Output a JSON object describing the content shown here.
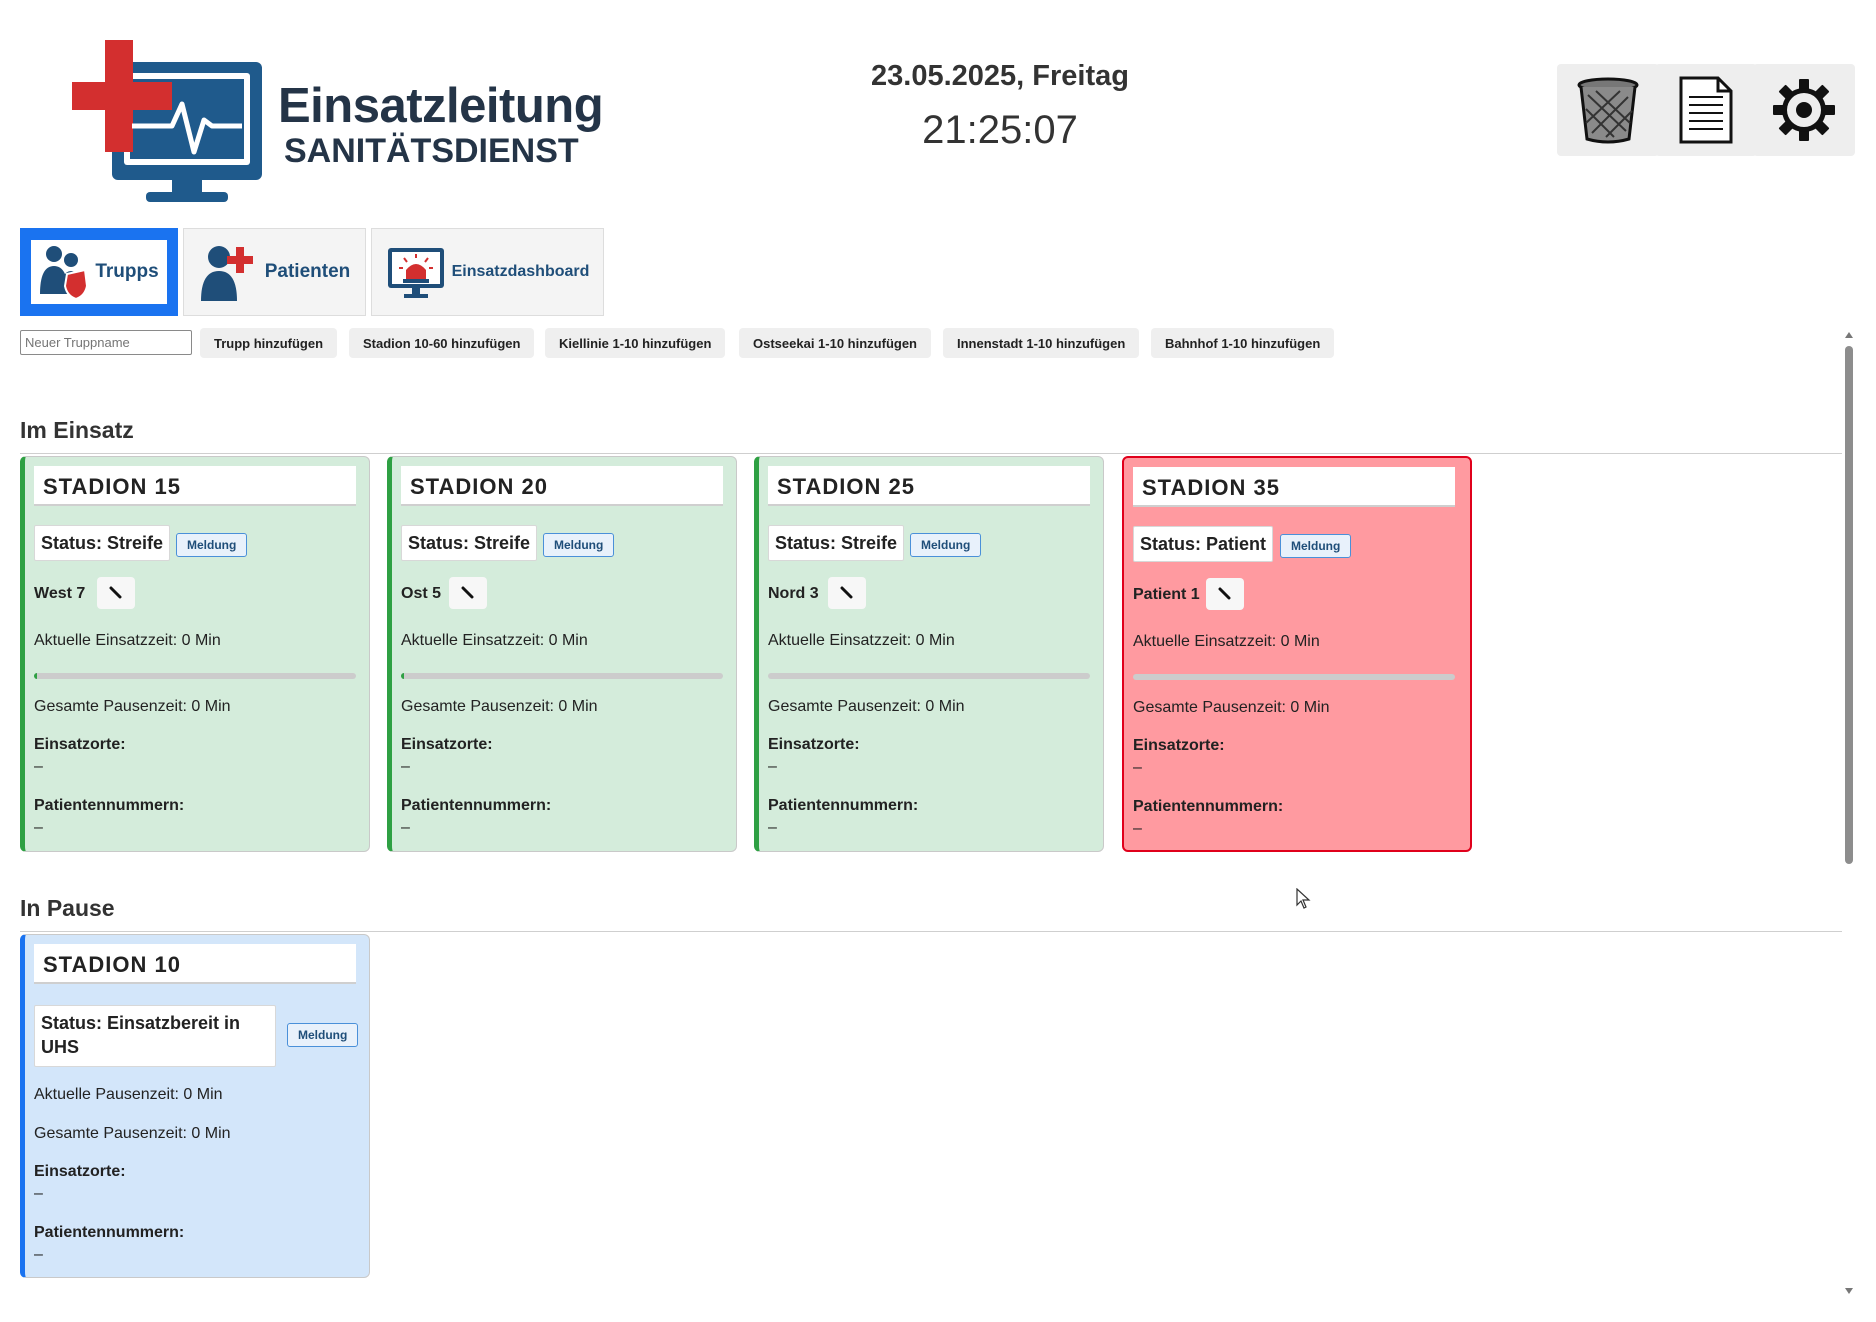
{
  "header": {
    "logo_title": "Einsatzleitung",
    "logo_subtitle": "SANITÄTSDIENST",
    "date": "23.05.2025, Freitag",
    "time": "21:25:07",
    "tools": [
      "trash-icon",
      "document-icon",
      "settings-gear-icon"
    ]
  },
  "tabs": [
    {
      "label": "Trupps",
      "active": true,
      "icon": "team-shield-icon"
    },
    {
      "label": "Patienten",
      "active": false,
      "icon": "patient-plus-icon"
    },
    {
      "label": "Einsatzdashboard",
      "active": false,
      "icon": "monitor-siren-icon"
    }
  ],
  "toolbar": {
    "name_placeholder": "Neuer Truppname",
    "buttons": [
      "Trupp hinzufügen",
      "Stadion 10-60 hinzufügen",
      "Kiellinie 1-10 hinzufügen",
      "Ostseekai 1-10 hinzufügen",
      "Innenstadt 1-10 hinzufügen",
      "Bahnhof 1-10 hinzufügen"
    ]
  },
  "sections": {
    "active_title": "Im Einsatz",
    "pause_title": "In Pause"
  },
  "active_cards": [
    {
      "name": "STADION 15",
      "status": "Status: Streife",
      "meldung": "Meldung",
      "location": "West 7",
      "edit_icon": "pencil-icon",
      "current_time": "Aktuelle Einsatzzeit: 0 Min",
      "progress": 0.01,
      "total_pause": "Gesamte Pausenzeit: 0 Min",
      "einsatzorte_label": "Einsatzorte:",
      "einsatzorte_value": "–",
      "patients_label": "Patientennummern:",
      "patients_value": "–",
      "color": "#d4ecdb"
    },
    {
      "name": "STADION 20",
      "status": "Status: Streife",
      "meldung": "Meldung",
      "location": "Ost 5",
      "edit_icon": "pencil-icon",
      "current_time": "Aktuelle Einsatzzeit: 0 Min",
      "progress": 0.01,
      "total_pause": "Gesamte Pausenzeit: 0 Min",
      "einsatzorte_label": "Einsatzorte:",
      "einsatzorte_value": "–",
      "patients_label": "Patientennummern:",
      "patients_value": "–",
      "color": "#d4ecdb"
    },
    {
      "name": "STADION 25",
      "status": "Status: Streife",
      "meldung": "Meldung",
      "location": "Nord 3",
      "edit_icon": "pencil-icon",
      "current_time": "Aktuelle Einsatzzeit: 0 Min",
      "progress": 0,
      "total_pause": "Gesamte Pausenzeit: 0 Min",
      "einsatzorte_label": "Einsatzorte:",
      "einsatzorte_value": "–",
      "patients_label": "Patientennummern:",
      "patients_value": "–",
      "color": "#d4ecdb"
    },
    {
      "name": "STADION 35",
      "status": "Status: Patient",
      "meldung": "Meldung",
      "location": "Patient 1",
      "edit_icon": "pencil-icon",
      "current_time": "Aktuelle Einsatzzeit: 0 Min",
      "progress": 0,
      "total_pause": "Gesamte Pausenzeit: 0 Min",
      "einsatzorte_label": "Einsatzorte:",
      "einsatzorte_value": "–",
      "patients_label": "Patientennummern:",
      "patients_value": "–",
      "color": "#ff9aa0"
    }
  ],
  "pause_cards": [
    {
      "name": "STADION 10",
      "status_line1": "Status: Einsatzbereit in",
      "status_line2": "UHS",
      "meldung": "Meldung",
      "current_pause": "Aktuelle Pausenzeit: 0 Min",
      "total_pause": "Gesamte Pausenzeit: 0 Min",
      "einsatzorte_label": "Einsatzorte:",
      "einsatzorte_value": "–",
      "patients_label": "Patientennummern:",
      "patients_value": "–",
      "color": "#d3e6fa"
    }
  ]
}
